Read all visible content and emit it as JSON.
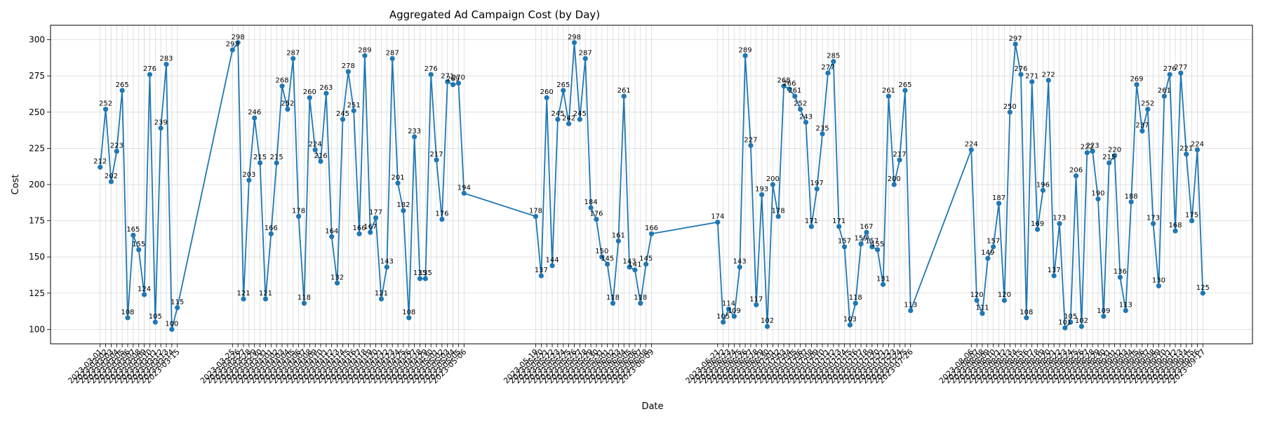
{
  "chart_data": {
    "type": "line",
    "title": "Aggregated Ad Campaign Cost (by Day)",
    "xlabel": "Date",
    "ylabel": "Cost",
    "ylim": [
      90,
      310
    ],
    "yticks": [
      100,
      125,
      150,
      175,
      200,
      225,
      250,
      275,
      300
    ],
    "grid": true,
    "marker": "circle",
    "colors": {
      "line": "#1f77b4",
      "grid": "#d9d9d9",
      "axis": "#000000"
    },
    "series": [
      {
        "name": "",
        "points": [
          {
            "x": "2023-03-01",
            "y": 212
          },
          {
            "x": "2023-03-02",
            "y": 252
          },
          {
            "x": "2023-03-03",
            "y": 202
          },
          {
            "x": "2023-03-04",
            "y": 223
          },
          {
            "x": "2023-03-05",
            "y": 265
          },
          {
            "x": "2023-03-06",
            "y": 108
          },
          {
            "x": "2023-03-07",
            "y": 165
          },
          {
            "x": "2023-03-08",
            "y": 155
          },
          {
            "x": "2023-03-09",
            "y": 124
          },
          {
            "x": "2023-03-10",
            "y": 276
          },
          {
            "x": "2023-03-11",
            "y": 105
          },
          {
            "x": "2023-03-12",
            "y": 239
          },
          {
            "x": "2023-03-13",
            "y": 283
          },
          {
            "x": "2023-03-14",
            "y": 100
          },
          {
            "x": "2023-03-15",
            "y": 115
          },
          {
            "x": "2023-03-25",
            "y": 293
          },
          {
            "x": "2023-03-26",
            "y": 298
          },
          {
            "x": "2023-03-27",
            "y": 121
          },
          {
            "x": "2023-03-28",
            "y": 203
          },
          {
            "x": "2023-03-29",
            "y": 246
          },
          {
            "x": "2023-03-30",
            "y": 215
          },
          {
            "x": "2023-03-31",
            "y": 121
          },
          {
            "x": "2023-04-01",
            "y": 166
          },
          {
            "x": "2023-04-02",
            "y": 215
          },
          {
            "x": "2023-04-03",
            "y": 268
          },
          {
            "x": "2023-04-04",
            "y": 252
          },
          {
            "x": "2023-04-05",
            "y": 287
          },
          {
            "x": "2023-04-06",
            "y": 178
          },
          {
            "x": "2023-04-07",
            "y": 118
          },
          {
            "x": "2023-04-08",
            "y": 260
          },
          {
            "x": "2023-04-09",
            "y": 224
          },
          {
            "x": "2023-04-10",
            "y": 216
          },
          {
            "x": "2023-04-11",
            "y": 263
          },
          {
            "x": "2023-04-12",
            "y": 164
          },
          {
            "x": "2023-04-13",
            "y": 132
          },
          {
            "x": "2023-04-14",
            "y": 245
          },
          {
            "x": "2023-04-15",
            "y": 278
          },
          {
            "x": "2023-04-16",
            "y": 251
          },
          {
            "x": "2023-04-17",
            "y": 166
          },
          {
            "x": "2023-04-18",
            "y": 289
          },
          {
            "x": "2023-04-19",
            "y": 167
          },
          {
            "x": "2023-04-20",
            "y": 177
          },
          {
            "x": "2023-04-21",
            "y": 121
          },
          {
            "x": "2023-04-22",
            "y": 143
          },
          {
            "x": "2023-04-23",
            "y": 287
          },
          {
            "x": "2023-04-24",
            "y": 201
          },
          {
            "x": "2023-04-25",
            "y": 182
          },
          {
            "x": "2023-04-26",
            "y": 108
          },
          {
            "x": "2023-04-27",
            "y": 233
          },
          {
            "x": "2023-04-28",
            "y": 135
          },
          {
            "x": "2023-04-29",
            "y": 135
          },
          {
            "x": "2023-04-30",
            "y": 276
          },
          {
            "x": "2023-05-01",
            "y": 217
          },
          {
            "x": "2023-05-02",
            "y": 176
          },
          {
            "x": "2023-05-03",
            "y": 271
          },
          {
            "x": "2023-05-04",
            "y": 269
          },
          {
            "x": "2023-05-05",
            "y": 270
          },
          {
            "x": "2023-05-06",
            "y": 194
          },
          {
            "x": "2023-05-19",
            "y": 178
          },
          {
            "x": "2023-05-20",
            "y": 137
          },
          {
            "x": "2023-05-21",
            "y": 260
          },
          {
            "x": "2023-05-22",
            "y": 144
          },
          {
            "x": "2023-05-23",
            "y": 245
          },
          {
            "x": "2023-05-24",
            "y": 265
          },
          {
            "x": "2023-05-25",
            "y": 242
          },
          {
            "x": "2023-05-26",
            "y": 298
          },
          {
            "x": "2023-05-27",
            "y": 245
          },
          {
            "x": "2023-05-28",
            "y": 287
          },
          {
            "x": "2023-05-29",
            "y": 184
          },
          {
            "x": "2023-05-30",
            "y": 176
          },
          {
            "x": "2023-05-31",
            "y": 150
          },
          {
            "x": "2023-06-01",
            "y": 145
          },
          {
            "x": "2023-06-02",
            "y": 118
          },
          {
            "x": "2023-06-03",
            "y": 161
          },
          {
            "x": "2023-06-04",
            "y": 261
          },
          {
            "x": "2023-06-05",
            "y": 143
          },
          {
            "x": "2023-06-06",
            "y": 141
          },
          {
            "x": "2023-06-07",
            "y": 118
          },
          {
            "x": "2023-06-08",
            "y": 145
          },
          {
            "x": "2023-06-09",
            "y": 166
          },
          {
            "x": "2023-06-21",
            "y": 174
          },
          {
            "x": "2023-06-22",
            "y": 105
          },
          {
            "x": "2023-06-23",
            "y": 114
          },
          {
            "x": "2023-06-24",
            "y": 109
          },
          {
            "x": "2023-06-25",
            "y": 143
          },
          {
            "x": "2023-06-26",
            "y": 289
          },
          {
            "x": "2023-06-27",
            "y": 227
          },
          {
            "x": "2023-06-28",
            "y": 117
          },
          {
            "x": "2023-06-29",
            "y": 193
          },
          {
            "x": "2023-06-30",
            "y": 102
          },
          {
            "x": "2023-07-01",
            "y": 200
          },
          {
            "x": "2023-07-02",
            "y": 178
          },
          {
            "x": "2023-07-03",
            "y": 268
          },
          {
            "x": "2023-07-04",
            "y": 266
          },
          {
            "x": "2023-07-05",
            "y": 261
          },
          {
            "x": "2023-07-06",
            "y": 252
          },
          {
            "x": "2023-07-07",
            "y": 243
          },
          {
            "x": "2023-07-08",
            "y": 171
          },
          {
            "x": "2023-07-09",
            "y": 197
          },
          {
            "x": "2023-07-10",
            "y": 235
          },
          {
            "x": "2023-07-11",
            "y": 277
          },
          {
            "x": "2023-07-12",
            "y": 285
          },
          {
            "x": "2023-07-13",
            "y": 171
          },
          {
            "x": "2023-07-14",
            "y": 157
          },
          {
            "x": "2023-07-15",
            "y": 103
          },
          {
            "x": "2023-07-16",
            "y": 118
          },
          {
            "x": "2023-07-17",
            "y": 159
          },
          {
            "x": "2023-07-18",
            "y": 167
          },
          {
            "x": "2023-07-19",
            "y": 157
          },
          {
            "x": "2023-07-20",
            "y": 155
          },
          {
            "x": "2023-07-21",
            "y": 131
          },
          {
            "x": "2023-07-22",
            "y": 261
          },
          {
            "x": "2023-07-23",
            "y": 200
          },
          {
            "x": "2023-07-24",
            "y": 217
          },
          {
            "x": "2023-07-25",
            "y": 265
          },
          {
            "x": "2023-07-26",
            "y": 113
          },
          {
            "x": "2023-08-06",
            "y": 224
          },
          {
            "x": "2023-08-07",
            "y": 120
          },
          {
            "x": "2023-08-08",
            "y": 111
          },
          {
            "x": "2023-08-09",
            "y": 149
          },
          {
            "x": "2023-08-10",
            "y": 157
          },
          {
            "x": "2023-08-11",
            "y": 187
          },
          {
            "x": "2023-08-12",
            "y": 120
          },
          {
            "x": "2023-08-13",
            "y": 250
          },
          {
            "x": "2023-08-14",
            "y": 297
          },
          {
            "x": "2023-08-15",
            "y": 276
          },
          {
            "x": "2023-08-16",
            "y": 108
          },
          {
            "x": "2023-08-17",
            "y": 271
          },
          {
            "x": "2023-08-18",
            "y": 169
          },
          {
            "x": "2023-08-19",
            "y": 196
          },
          {
            "x": "2023-08-20",
            "y": 272
          },
          {
            "x": "2023-08-21",
            "y": 137
          },
          {
            "x": "2023-08-22",
            "y": 173
          },
          {
            "x": "2023-08-23",
            "y": 101
          },
          {
            "x": "2023-08-24",
            "y": 105
          },
          {
            "x": "2023-08-25",
            "y": 206
          },
          {
            "x": "2023-08-26",
            "y": 102
          },
          {
            "x": "2023-08-27",
            "y": 222
          },
          {
            "x": "2023-08-28",
            "y": 223
          },
          {
            "x": "2023-08-29",
            "y": 190
          },
          {
            "x": "2023-08-30",
            "y": 109
          },
          {
            "x": "2023-08-31",
            "y": 215
          },
          {
            "x": "2023-09-01",
            "y": 220
          },
          {
            "x": "2023-09-02",
            "y": 136
          },
          {
            "x": "2023-09-03",
            "y": 113
          },
          {
            "x": "2023-09-04",
            "y": 188
          },
          {
            "x": "2023-09-05",
            "y": 269
          },
          {
            "x": "2023-09-06",
            "y": 237
          },
          {
            "x": "2023-09-07",
            "y": 252
          },
          {
            "x": "2023-09-08",
            "y": 173
          },
          {
            "x": "2023-09-09",
            "y": 130
          },
          {
            "x": "2023-09-10",
            "y": 261
          },
          {
            "x": "2023-09-11",
            "y": 276
          },
          {
            "x": "2023-09-12",
            "y": 168
          },
          {
            "x": "2023-09-13",
            "y": 277
          },
          {
            "x": "2023-09-14",
            "y": 221
          },
          {
            "x": "2023-09-15",
            "y": 175
          },
          {
            "x": "2023-09-16",
            "y": 224
          },
          {
            "x": "2023-09-17",
            "y": 125
          }
        ]
      }
    ]
  }
}
